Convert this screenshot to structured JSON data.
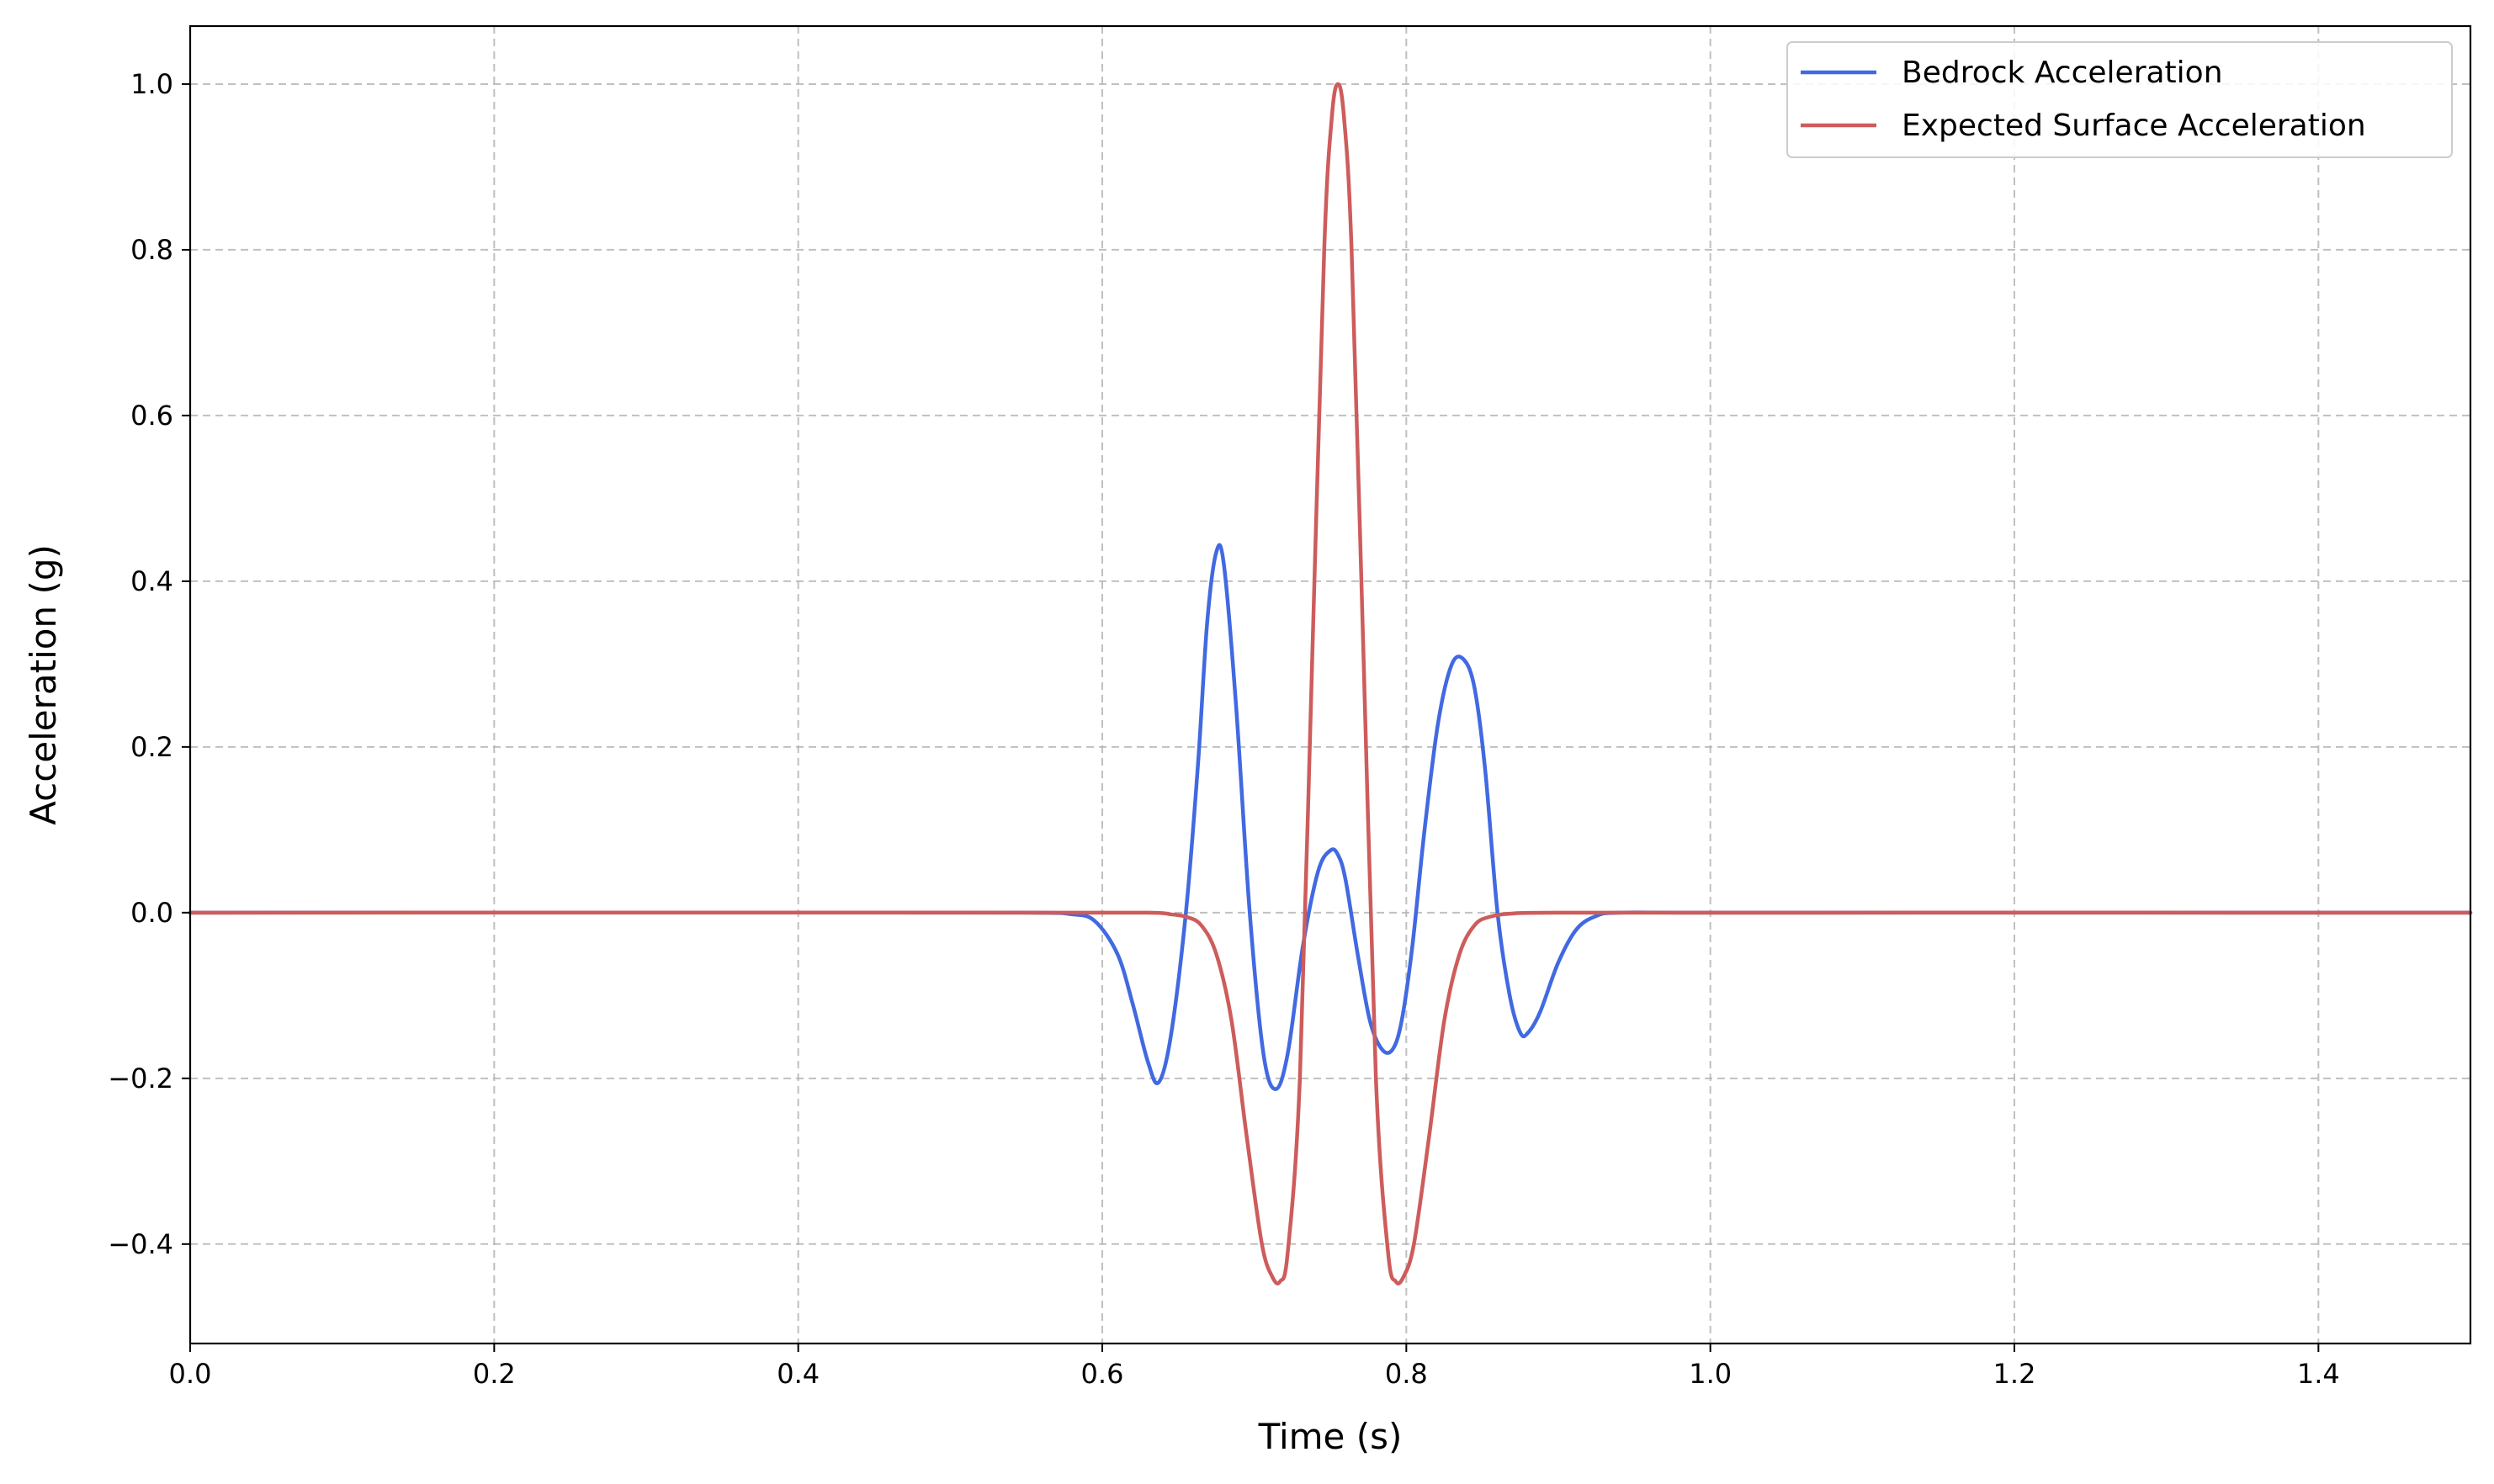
{
  "chart_data": {
    "type": "line",
    "title": "",
    "xlabel": "Time (s)",
    "ylabel": "Acceleration (g)",
    "xlim": [
      0.0,
      1.5
    ],
    "ylim": [
      -0.52,
      1.07
    ],
    "xticks": [
      0.0,
      0.2,
      0.4,
      0.6,
      0.8,
      1.0,
      1.2,
      1.4
    ],
    "xtick_labels": [
      "0.0",
      "0.2",
      "0.4",
      "0.6",
      "0.8",
      "1.0",
      "1.2",
      "1.4"
    ],
    "yticks": [
      -0.4,
      -0.2,
      0.0,
      0.2,
      0.4,
      0.6,
      0.8,
      1.0
    ],
    "ytick_labels": [
      "−0.4",
      "−0.2",
      "0.0",
      "0.2",
      "0.4",
      "0.6",
      "0.8",
      "1.0"
    ],
    "grid": true,
    "legend_position": "upper-right",
    "series": [
      {
        "name": "Bedrock Acceleration",
        "color": "#4169e1",
        "x": [
          0.0,
          0.55,
          0.58,
          0.595,
          0.61,
          0.62,
          0.63,
          0.637,
          0.645,
          0.655,
          0.663,
          0.669,
          0.675,
          0.68,
          0.688,
          0.697,
          0.706,
          0.714,
          0.722,
          0.732,
          0.742,
          0.75,
          0.755,
          0.76,
          0.768,
          0.776,
          0.784,
          0.791,
          0.797,
          0.804,
          0.812,
          0.821,
          0.83,
          0.838,
          0.845,
          0.852,
          0.86,
          0.868,
          0.875,
          0.88,
          0.888,
          0.9,
          0.912,
          0.925,
          0.94,
          1.0,
          1.5
        ],
        "values": [
          0.0,
          0.0,
          -0.002,
          -0.01,
          -0.05,
          -0.11,
          -0.18,
          -0.205,
          -0.15,
          0.0,
          0.18,
          0.35,
          0.435,
          0.42,
          0.25,
          0.0,
          -0.17,
          -0.213,
          -0.17,
          -0.04,
          0.05,
          0.075,
          0.07,
          0.04,
          -0.05,
          -0.13,
          -0.165,
          -0.165,
          -0.13,
          -0.04,
          0.1,
          0.23,
          0.3,
          0.305,
          0.27,
          0.17,
          0.0,
          -0.1,
          -0.145,
          -0.145,
          -0.12,
          -0.06,
          -0.02,
          -0.004,
          0.0,
          0.0,
          0.0
        ]
      },
      {
        "name": "Expected Surface Acceleration",
        "color": "#cd5c5c",
        "x": [
          0.0,
          0.63,
          0.645,
          0.655,
          0.665,
          0.675,
          0.685,
          0.695,
          0.705,
          0.712,
          0.717,
          0.722,
          0.73,
          0.738,
          0.746,
          0.751,
          0.755,
          0.759,
          0.764,
          0.772,
          0.78,
          0.788,
          0.793,
          0.798,
          0.805,
          0.815,
          0.825,
          0.835,
          0.845,
          0.855,
          0.87,
          0.9,
          1.5
        ],
        "values": [
          0.0,
          0.0,
          -0.002,
          -0.005,
          -0.015,
          -0.05,
          -0.13,
          -0.27,
          -0.4,
          -0.44,
          -0.445,
          -0.41,
          -0.2,
          0.3,
          0.8,
          0.96,
          1.0,
          0.96,
          0.8,
          0.3,
          -0.2,
          -0.41,
          -0.445,
          -0.44,
          -0.4,
          -0.27,
          -0.13,
          -0.05,
          -0.015,
          -0.005,
          -0.001,
          0.0,
          0.0
        ]
      }
    ]
  }
}
